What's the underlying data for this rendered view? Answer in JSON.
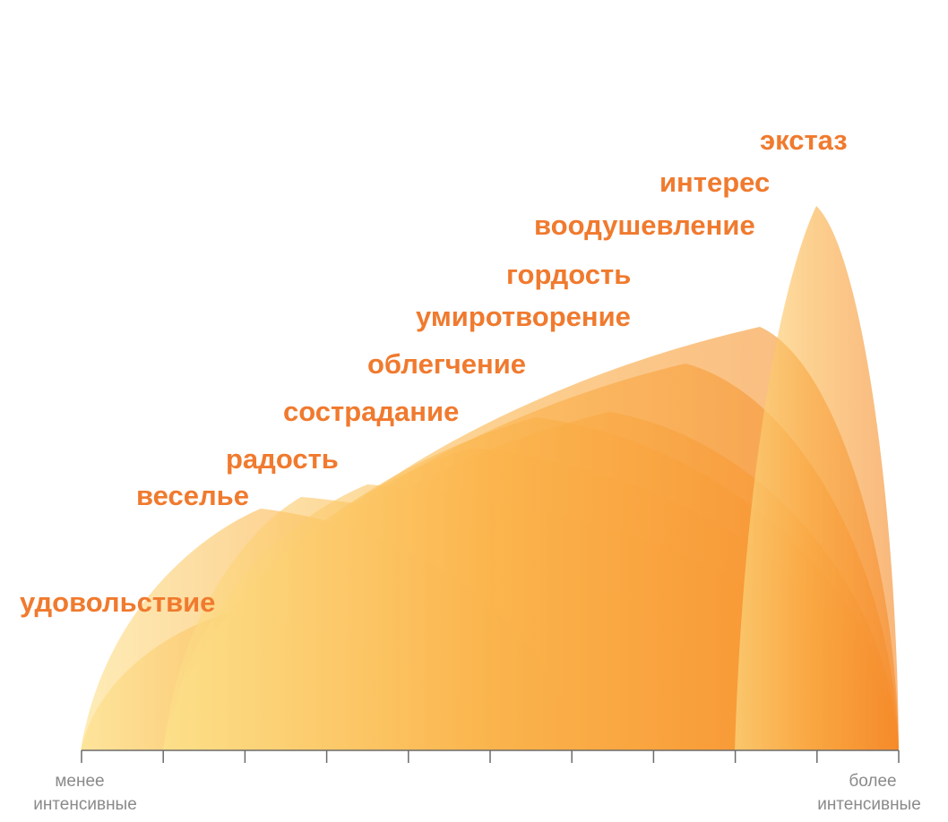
{
  "colors": {
    "label": "#f07a2e",
    "axis_text": "#8a8a8a",
    "axis_line": "#6b6b6b",
    "gradient_light": "#fde08a",
    "gradient_mid": "#fbb44c",
    "gradient_dark": "#f58a2a"
  },
  "emotions": [
    {
      "id": "udovolstvie",
      "label": "удовольствие"
    },
    {
      "id": "vesele",
      "label": "веселье"
    },
    {
      "id": "radost",
      "label": "радость"
    },
    {
      "id": "sostradanie",
      "label": "сострадание"
    },
    {
      "id": "oblegchenie",
      "label": "облегчение"
    },
    {
      "id": "umirotvorenie",
      "label": "умиротворение"
    },
    {
      "id": "gordost",
      "label": "гордость"
    },
    {
      "id": "voodushevlenie",
      "label": "воодушевление"
    },
    {
      "id": "interes",
      "label": "интерес"
    },
    {
      "id": "ekstaz",
      "label": "экстаз"
    }
  ],
  "axis": {
    "left_label_line1": "менее",
    "left_label_line2": "интенсивные",
    "right_label_line1": "более",
    "right_label_line2": "интенсивные",
    "tick_count": 11
  }
}
